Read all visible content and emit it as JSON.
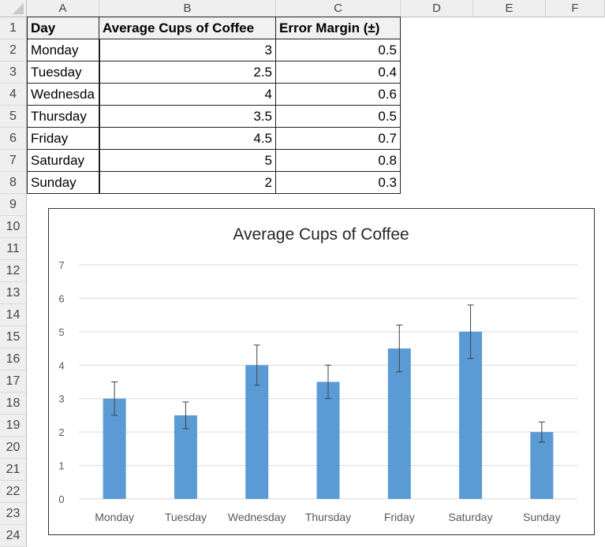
{
  "sheet": {
    "columns": [
      "A",
      "B",
      "C",
      "D",
      "E",
      "F"
    ],
    "rows": [
      "1",
      "2",
      "3",
      "4",
      "5",
      "6",
      "7",
      "8",
      "9",
      "10",
      "11",
      "12",
      "13",
      "14",
      "15",
      "16",
      "17",
      "18",
      "19",
      "20",
      "21",
      "22",
      "23",
      "24"
    ],
    "table": {
      "headers": [
        "Day",
        "Average Cups of Coffee",
        "Error Margin (±)"
      ],
      "rows": [
        [
          "Wednesda",
          "4",
          "0.6"
        ],
        [
          "Monday",
          "3",
          "0.5"
        ],
        [
          "Tuesday",
          "2.5",
          "0.4"
        ],
        [
          "Thursday",
          "3.5",
          "0.5"
        ],
        [
          "Friday",
          "4.5",
          "0.7"
        ],
        [
          "Saturday",
          "5",
          "0.8"
        ],
        [
          "Sunday",
          "2",
          "0.3"
        ]
      ],
      "display_rows": [
        {
          "day": "Monday",
          "avg": "3",
          "err": "0.5"
        },
        {
          "day": "Tuesday",
          "avg": "2.5",
          "err": "0.4"
        },
        {
          "day": "Wednesda",
          "avg": "4",
          "err": "0.6"
        },
        {
          "day": "Thursday",
          "avg": "3.5",
          "err": "0.5"
        },
        {
          "day": "Friday",
          "avg": "4.5",
          "err": "0.7"
        },
        {
          "day": "Saturday",
          "avg": "5",
          "err": "0.8"
        },
        {
          "day": "Sunday",
          "avg": "2",
          "err": "0.3"
        }
      ]
    }
  },
  "colors": {
    "bar": "#5b9bd5",
    "gridline": "#d9d9d9",
    "error_bar": "#404040",
    "axis_text": "#595959",
    "title_text": "#262626"
  },
  "chart_data": {
    "type": "bar",
    "title": "Average Cups of Coffee",
    "categories": [
      "Monday",
      "Tuesday",
      "Wednesday",
      "Thursday",
      "Friday",
      "Saturday",
      "Sunday"
    ],
    "values": [
      3,
      2.5,
      4,
      3.5,
      4.5,
      5,
      2
    ],
    "error": [
      0.5,
      0.4,
      0.6,
      0.5,
      0.7,
      0.8,
      0.3
    ],
    "yticks": [
      "0",
      "1",
      "2",
      "3",
      "4",
      "5",
      "6",
      "7"
    ],
    "ylim": [
      0,
      7
    ],
    "xlabel": "",
    "ylabel": "",
    "grid": true,
    "legend": "none"
  }
}
